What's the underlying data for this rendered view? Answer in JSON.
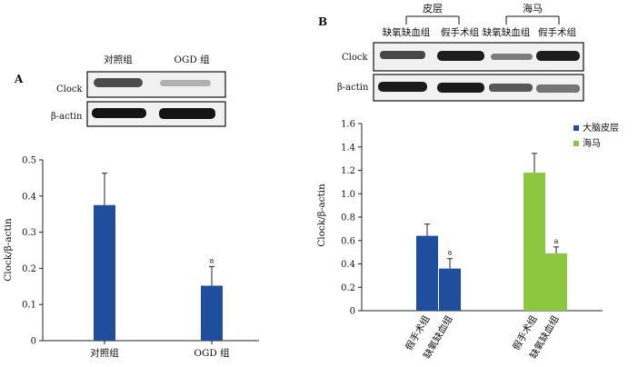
{
  "panel_a": {
    "letter": "A",
    "blot": {
      "lane_labels": [
        "对照组",
        "OGD 组"
      ],
      "row_labels": [
        "Clock",
        "β-actin"
      ]
    }
  },
  "panel_b": {
    "letter": "B",
    "blot": {
      "group_labels": [
        "皮层",
        "海马"
      ],
      "lane_labels": [
        "缺氧缺血组",
        "假手术组",
        "缺氧缺血组",
        "假手术组"
      ],
      "row_labels": [
        "Clock",
        "β-actin"
      ]
    }
  },
  "chart_data": [
    {
      "type": "bar",
      "ylabel": "Clock/β-actin",
      "xlabel": "",
      "ylim": [
        0,
        0.5
      ],
      "yticks": [
        "0",
        "0.1",
        "0.2",
        "0.3",
        "0.4",
        "0.5"
      ],
      "categories": [
        "对照组",
        "OGD 组"
      ],
      "values": [
        0.375,
        0.152
      ],
      "errors": [
        0.088,
        0.053
      ],
      "annotations": [
        "",
        "a"
      ],
      "color": "#1f4e9c",
      "legend": "none",
      "grid": false
    },
    {
      "type": "bar",
      "ylabel": "Clock/β-actin",
      "xlabel": "",
      "ylim": [
        0,
        1.6
      ],
      "yticks": [
        "0",
        "0.2",
        "0.4",
        "0.6",
        "0.8",
        "1.0",
        "1.2",
        "1.4",
        "1.6"
      ],
      "groups": [
        {
          "series": "大脑皮层",
          "categories": [
            "假手术组",
            "缺氧缺血组"
          ],
          "values": [
            0.64,
            0.36
          ],
          "errors": [
            0.1,
            0.085
          ],
          "annotations": [
            "",
            "a"
          ]
        },
        {
          "series": "海马",
          "categories": [
            "假手术组",
            "缺氧缺血组"
          ],
          "values": [
            1.18,
            0.49
          ],
          "errors": [
            0.165,
            0.055
          ],
          "annotations": [
            "",
            "a"
          ]
        }
      ],
      "legend": {
        "position": "top-right",
        "entries": [
          {
            "name": "大脑皮层",
            "color": "#1f4e9c"
          },
          {
            "name": "海马",
            "color": "#8dc63f"
          }
        ]
      },
      "grid": false
    }
  ]
}
